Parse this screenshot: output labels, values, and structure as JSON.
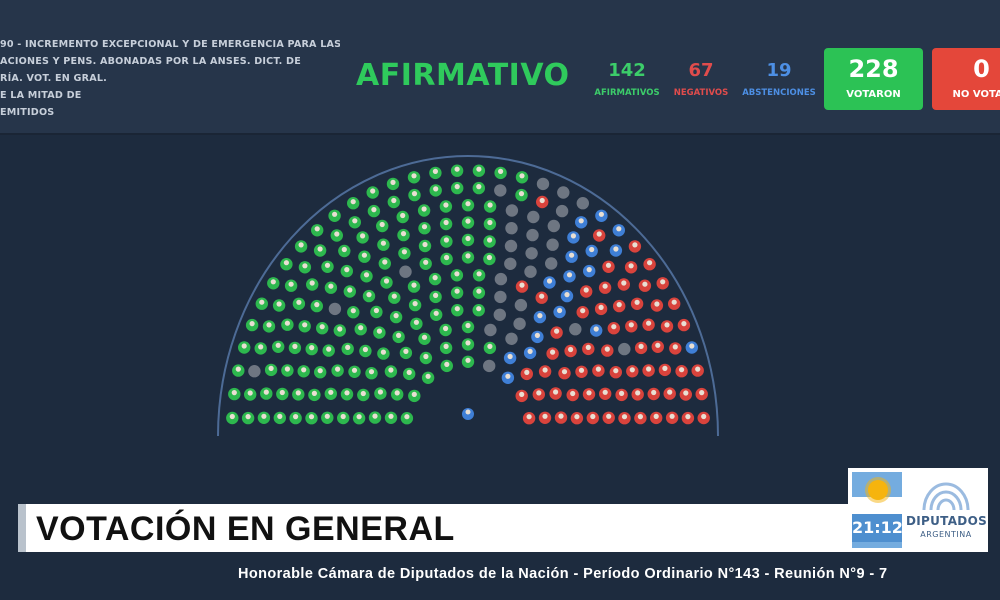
{
  "motion": {
    "lines": [
      "90 - INCREMENTO EXCEPCIONAL Y DE EMERGENCIA PARA LAS",
      "ACIONES Y PENS. ABONADAS POR LA ANSES. DICT. DE",
      "RÍA. VOT. EN GRAL.",
      "E LA MITAD DE",
      "EMITIDOS"
    ]
  },
  "result": "AFIRMATIVO",
  "stats": {
    "afirmativos": {
      "value": "142",
      "label": "AFIRMATIVOS"
    },
    "negativos": {
      "value": "67",
      "label": "NEGATIVOS"
    },
    "abstenciones": {
      "value": "19",
      "label": "ABSTENCIONES"
    }
  },
  "boxes": {
    "votaron": {
      "value": "228",
      "label": "VOTARON"
    },
    "no_votaron": {
      "value": "0",
      "label": "NO VOTAR"
    }
  },
  "hemicycle": {
    "total_seats": 257,
    "affirmative": 142,
    "negative": 67,
    "abstention": 19,
    "absent": 29,
    "colors": {
      "affirmative": "#2db84e",
      "negative": "#d9433c",
      "abstention": "#3f7fd6",
      "absent": "#6e7682",
      "face": "#e9dfd3"
    }
  },
  "banner": {
    "title": "VOTACIÓN EN GENERAL"
  },
  "logo": {
    "clock": "21:12",
    "name": "DIPUTADOS",
    "country": "ARGENTINA"
  },
  "ticker": "Honorable Cámara de Diputados de la Nación - Período Ordinario N°143 - Reunión N°9 - 7"
}
